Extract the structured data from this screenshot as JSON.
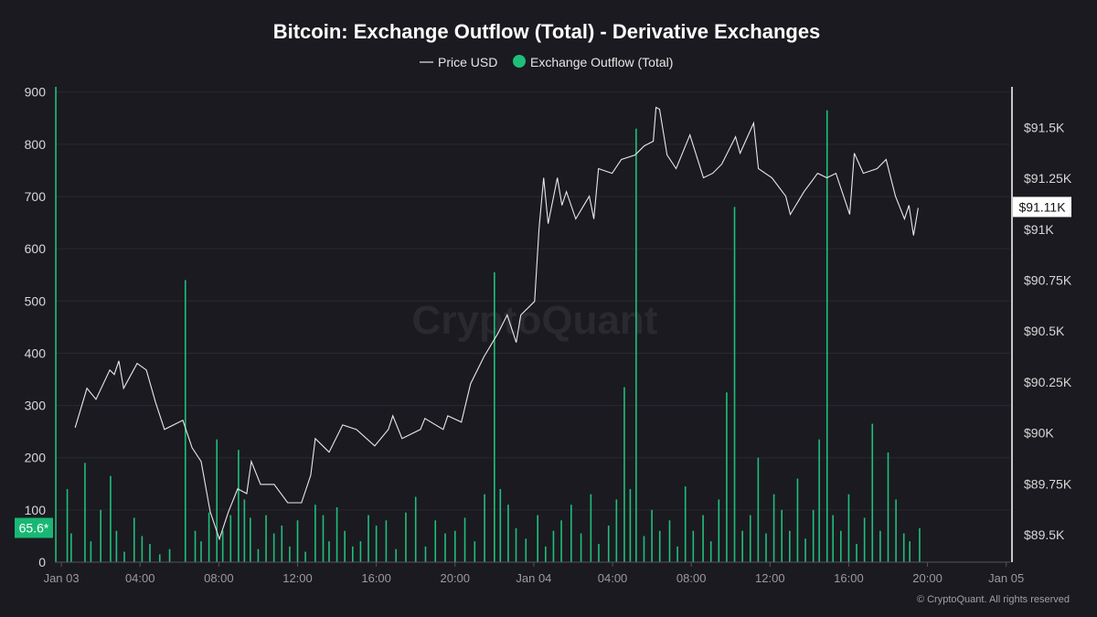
{
  "chart_data": {
    "type": "bar+line",
    "title": "Bitcoin: Exchange Outflow (Total) - Derivative Exchanges",
    "legend": [
      "Price USD",
      "Exchange Outflow (Total)"
    ],
    "legend_placement": "top-center",
    "x_unit": "hours since Jan 03 00:00",
    "x_ticks": [
      {
        "t": 0,
        "label": "Jan 03"
      },
      {
        "t": 4,
        "label": "04:00"
      },
      {
        "t": 8,
        "label": "08:00"
      },
      {
        "t": 12,
        "label": "12:00"
      },
      {
        "t": 16,
        "label": "16:00"
      },
      {
        "t": 20,
        "label": "20:00"
      },
      {
        "t": 24,
        "label": "Jan 04"
      },
      {
        "t": 28,
        "label": "04:00"
      },
      {
        "t": 32,
        "label": "08:00"
      },
      {
        "t": 36,
        "label": "12:00"
      },
      {
        "t": 40,
        "label": "16:00"
      },
      {
        "t": 44,
        "label": "20:00"
      },
      {
        "t": 48,
        "label": "Jan 05"
      }
    ],
    "xlim": [
      -0.33,
      48.2
    ],
    "left_axis": {
      "ylim": [
        0,
        910
      ],
      "ticks": [
        {
          "v": 0,
          "label": "0"
        },
        {
          "v": 100,
          "label": "100"
        },
        {
          "v": 200,
          "label": "200"
        },
        {
          "v": 300,
          "label": "300"
        },
        {
          "v": 400,
          "label": "400"
        },
        {
          "v": 500,
          "label": "500"
        },
        {
          "v": 600,
          "label": "600"
        },
        {
          "v": 700,
          "label": "700"
        },
        {
          "v": 800,
          "label": "800"
        },
        {
          "v": 900,
          "label": "900"
        }
      ]
    },
    "right_axis": {
      "ylim": [
        89365,
        91700
      ],
      "ticks": [
        {
          "v": 89500,
          "label": "$89.5K"
        },
        {
          "v": 89750,
          "label": "$89.75K"
        },
        {
          "v": 90000,
          "label": "$90K"
        },
        {
          "v": 90250,
          "label": "$90.25K"
        },
        {
          "v": 90500,
          "label": "$90.5K"
        },
        {
          "v": 90750,
          "label": "$90.75K"
        },
        {
          "v": 91000,
          "label": "$91K"
        },
        {
          "v": 91250,
          "label": "$91.25K"
        },
        {
          "v": 91500,
          "label": "$91.5K"
        }
      ]
    },
    "current_outflow": {
      "value": 65.6,
      "label": "65.6*"
    },
    "current_price": {
      "value": 91110,
      "label": "$91.11K"
    },
    "price_series": [
      [
        0.7,
        90026
      ],
      [
        1.3,
        90219
      ],
      [
        1.76,
        90165
      ],
      [
        2.46,
        90309
      ],
      [
        2.69,
        90287
      ],
      [
        2.92,
        90354
      ],
      [
        3.16,
        90219
      ],
      [
        3.85,
        90341
      ],
      [
        4.32,
        90309
      ],
      [
        4.78,
        90152
      ],
      [
        5.24,
        90017
      ],
      [
        6.17,
        90062
      ],
      [
        6.64,
        89927
      ],
      [
        7.1,
        89860
      ],
      [
        7.56,
        89613
      ],
      [
        8.03,
        89478
      ],
      [
        8.49,
        89613
      ],
      [
        8.96,
        89725
      ],
      [
        9.42,
        89702
      ],
      [
        9.65,
        89860
      ],
      [
        10.12,
        89747
      ],
      [
        10.81,
        89747
      ],
      [
        11.5,
        89657
      ],
      [
        12.2,
        89657
      ],
      [
        12.67,
        89792
      ],
      [
        12.9,
        89972
      ],
      [
        13.6,
        89905
      ],
      [
        14.29,
        90039
      ],
      [
        14.99,
        90017
      ],
      [
        15.92,
        89936
      ],
      [
        16.61,
        90017
      ],
      [
        16.84,
        90084
      ],
      [
        17.31,
        89972
      ],
      [
        18.24,
        90017
      ],
      [
        18.47,
        90071
      ],
      [
        19.4,
        90017
      ],
      [
        19.63,
        90084
      ],
      [
        20.32,
        90053
      ],
      [
        20.79,
        90242
      ],
      [
        21.48,
        90376
      ],
      [
        22.18,
        90489
      ],
      [
        22.65,
        90579
      ],
      [
        23.11,
        90444
      ],
      [
        23.34,
        90579
      ],
      [
        24.04,
        90646
      ],
      [
        24.27,
        91006
      ],
      [
        24.5,
        91253
      ],
      [
        24.73,
        91028
      ],
      [
        25.2,
        91253
      ],
      [
        25.43,
        91118
      ],
      [
        25.66,
        91185
      ],
      [
        26.13,
        91051
      ],
      [
        26.82,
        91163
      ],
      [
        27.05,
        91051
      ],
      [
        27.29,
        91298
      ],
      [
        27.98,
        91275
      ],
      [
        28.45,
        91343
      ],
      [
        29.14,
        91365
      ],
      [
        29.61,
        91410
      ],
      [
        30.07,
        91433
      ],
      [
        30.21,
        91599
      ],
      [
        30.39,
        91590
      ],
      [
        30.77,
        91365
      ],
      [
        31.23,
        91298
      ],
      [
        31.93,
        91464
      ],
      [
        32.62,
        91253
      ],
      [
        33.09,
        91275
      ],
      [
        33.55,
        91320
      ],
      [
        34.25,
        91455
      ],
      [
        34.48,
        91374
      ],
      [
        35.17,
        91522
      ],
      [
        35.41,
        91298
      ],
      [
        36.1,
        91253
      ],
      [
        36.8,
        91163
      ],
      [
        37.03,
        91073
      ],
      [
        37.73,
        91185
      ],
      [
        38.42,
        91275
      ],
      [
        38.89,
        91253
      ],
      [
        39.35,
        91275
      ],
      [
        40.05,
        91073
      ],
      [
        40.28,
        91374
      ],
      [
        40.74,
        91275
      ],
      [
        41.44,
        91298
      ],
      [
        41.9,
        91343
      ],
      [
        42.37,
        91163
      ],
      [
        42.83,
        91051
      ],
      [
        43.06,
        91118
      ],
      [
        43.29,
        90970
      ],
      [
        43.53,
        91105
      ]
    ],
    "outflow_series": [
      [
        -0.28,
        910
      ],
      [
        0.3,
        140
      ],
      [
        0.5,
        55
      ],
      [
        1.2,
        190
      ],
      [
        1.5,
        40
      ],
      [
        2.0,
        100
      ],
      [
        2.5,
        165
      ],
      [
        2.8,
        60
      ],
      [
        3.2,
        20
      ],
      [
        3.7,
        85
      ],
      [
        4.1,
        50
      ],
      [
        4.5,
        35
      ],
      [
        5.0,
        15
      ],
      [
        5.5,
        25
      ],
      [
        6.3,
        540
      ],
      [
        6.8,
        60
      ],
      [
        7.1,
        40
      ],
      [
        7.5,
        95
      ],
      [
        7.9,
        235
      ],
      [
        8.2,
        60
      ],
      [
        8.6,
        90
      ],
      [
        9.0,
        215
      ],
      [
        9.3,
        120
      ],
      [
        9.6,
        85
      ],
      [
        10.0,
        25
      ],
      [
        10.4,
        90
      ],
      [
        10.8,
        55
      ],
      [
        11.2,
        70
      ],
      [
        11.6,
        30
      ],
      [
        12.0,
        80
      ],
      [
        12.4,
        20
      ],
      [
        12.9,
        110
      ],
      [
        13.3,
        90
      ],
      [
        13.6,
        40
      ],
      [
        14.0,
        105
      ],
      [
        14.4,
        60
      ],
      [
        14.8,
        30
      ],
      [
        15.2,
        40
      ],
      [
        15.6,
        90
      ],
      [
        16.0,
        70
      ],
      [
        16.5,
        80
      ],
      [
        17.0,
        25
      ],
      [
        17.5,
        95
      ],
      [
        18.0,
        125
      ],
      [
        18.5,
        30
      ],
      [
        19.0,
        80
      ],
      [
        19.5,
        55
      ],
      [
        20.0,
        60
      ],
      [
        20.5,
        85
      ],
      [
        21.0,
        40
      ],
      [
        21.5,
        130
      ],
      [
        22.0,
        555
      ],
      [
        22.3,
        140
      ],
      [
        22.7,
        110
      ],
      [
        23.1,
        65
      ],
      [
        23.6,
        45
      ],
      [
        24.2,
        90
      ],
      [
        24.6,
        30
      ],
      [
        25.0,
        60
      ],
      [
        25.4,
        80
      ],
      [
        25.9,
        110
      ],
      [
        26.4,
        55
      ],
      [
        26.9,
        130
      ],
      [
        27.3,
        35
      ],
      [
        27.8,
        70
      ],
      [
        28.2,
        120
      ],
      [
        28.6,
        335
      ],
      [
        28.9,
        140
      ],
      [
        29.2,
        830
      ],
      [
        29.6,
        50
      ],
      [
        30.0,
        100
      ],
      [
        30.4,
        60
      ],
      [
        30.9,
        80
      ],
      [
        31.3,
        30
      ],
      [
        31.7,
        145
      ],
      [
        32.1,
        60
      ],
      [
        32.6,
        90
      ],
      [
        33.0,
        40
      ],
      [
        33.4,
        120
      ],
      [
        33.8,
        325
      ],
      [
        34.2,
        680
      ],
      [
        34.6,
        60
      ],
      [
        35.0,
        90
      ],
      [
        35.4,
        200
      ],
      [
        35.8,
        55
      ],
      [
        36.2,
        130
      ],
      [
        36.6,
        100
      ],
      [
        37.0,
        60
      ],
      [
        37.4,
        160
      ],
      [
        37.8,
        45
      ],
      [
        38.2,
        100
      ],
      [
        38.5,
        235
      ],
      [
        38.9,
        865
      ],
      [
        39.2,
        90
      ],
      [
        39.6,
        60
      ],
      [
        40.0,
        130
      ],
      [
        40.4,
        35
      ],
      [
        40.8,
        85
      ],
      [
        41.2,
        265
      ],
      [
        41.6,
        60
      ],
      [
        42.0,
        210
      ],
      [
        42.4,
        120
      ],
      [
        42.8,
        55
      ],
      [
        43.1,
        40
      ],
      [
        43.6,
        65
      ]
    ],
    "watermark": "CryptoQuant",
    "footer": "© CryptoQuant. All rights reserved",
    "colors": {
      "bar": "#1fbf7a",
      "price": "#e8e8e8",
      "label_bg": "#18b874",
      "background": "#1b1a20",
      "grid": "#2a2930"
    }
  }
}
